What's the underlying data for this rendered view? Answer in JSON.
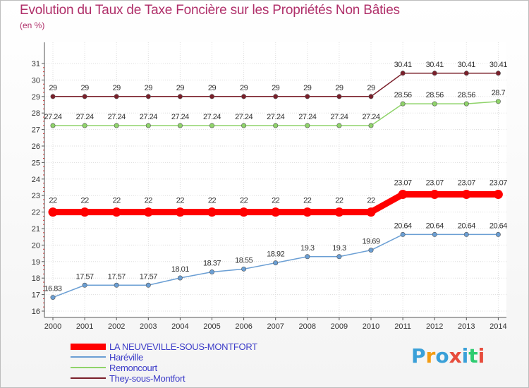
{
  "title": "Evolution du Taux de Taxe Foncière sur les Propriétés Non Bâties",
  "unit_label": "(en %)",
  "logo_text": "Proxiti",
  "logo_colors": [
    "#3aa0d8",
    "#f39c12",
    "#3aa0d8",
    "#e74c3c",
    "#3aa0d8",
    "#2ecc71",
    "#e74c3c"
  ],
  "chart_data": {
    "type": "line",
    "title": "Evolution du Taux de Taxe Foncière sur les Propriétés Non Bâties",
    "ylabel": "(en %)",
    "xlabel": "",
    "x": [
      "2000",
      "2001",
      "2002",
      "2003",
      "2004",
      "2005",
      "2006",
      "2007",
      "2008",
      "2009",
      "2010",
      "2011",
      "2012",
      "2013",
      "2014"
    ],
    "ylim": [
      16,
      31
    ],
    "yticks": [
      "16",
      "17",
      "18",
      "19",
      "20",
      "21",
      "22",
      "23",
      "24",
      "25",
      "26",
      "27",
      "28",
      "29",
      "30",
      "31"
    ],
    "grid": true,
    "legend_position": "bottom-left",
    "series": [
      {
        "name": "They-sous-Montfort",
        "color": "#7a1f2a",
        "emphasis": false,
        "values": [
          29,
          29,
          29,
          29,
          29,
          29,
          29,
          29,
          29,
          29,
          29,
          30.41,
          30.41,
          30.41,
          30.41
        ],
        "labels": [
          "29",
          "29",
          "29",
          "29",
          "29",
          "29",
          "29",
          "29",
          "29",
          "29",
          "29",
          "30.41",
          "30.41",
          "30.41",
          "30.41"
        ]
      },
      {
        "name": "Remoncourt",
        "color": "#8fd36a",
        "emphasis": false,
        "values": [
          27.24,
          27.24,
          27.24,
          27.24,
          27.24,
          27.24,
          27.24,
          27.24,
          27.24,
          27.24,
          27.24,
          28.56,
          28.56,
          28.56,
          28.7
        ],
        "labels": [
          "27.24",
          "27.24",
          "27.24",
          "27.24",
          "27.24",
          "27.24",
          "27.24",
          "27.24",
          "27.24",
          "27.24",
          "27.24",
          "28.56",
          "28.56",
          "28.56",
          "28.7"
        ]
      },
      {
        "name": "LA NEUVEVILLE-SOUS-MONTFORT",
        "color": "#ff0000",
        "emphasis": true,
        "values": [
          22,
          22,
          22,
          22,
          22,
          22,
          22,
          22,
          22,
          22,
          22,
          23.07,
          23.07,
          23.07,
          23.07
        ],
        "labels": [
          "22",
          "22",
          "22",
          "22",
          "22",
          "22",
          "22",
          "22",
          "22",
          "22",
          "22",
          "23.07",
          "23.07",
          "23.07",
          "23.07"
        ]
      },
      {
        "name": "Haréville",
        "color": "#6b9fd4",
        "emphasis": false,
        "values": [
          16.83,
          17.57,
          17.57,
          17.57,
          18.01,
          18.37,
          18.55,
          18.92,
          19.3,
          19.3,
          19.69,
          20.64,
          20.64,
          20.64,
          20.64
        ],
        "labels": [
          "16.83",
          "17.57",
          "17.57",
          "17.57",
          "18.01",
          "18.37",
          "18.55",
          "18.92",
          "19.3",
          "19.3",
          "19.69",
          "20.64",
          "20.64",
          "20.64",
          "20.64"
        ]
      }
    ],
    "legend": [
      {
        "name": "LA NEUVEVILLE-SOUS-MONTFORT",
        "color": "#ff0000",
        "emphasis": true
      },
      {
        "name": "Haréville",
        "color": "#6b9fd4",
        "emphasis": false
      },
      {
        "name": "Remoncourt",
        "color": "#8fd36a",
        "emphasis": false
      },
      {
        "name": "They-sous-Montfort",
        "color": "#7a1f2a",
        "emphasis": false
      }
    ]
  }
}
